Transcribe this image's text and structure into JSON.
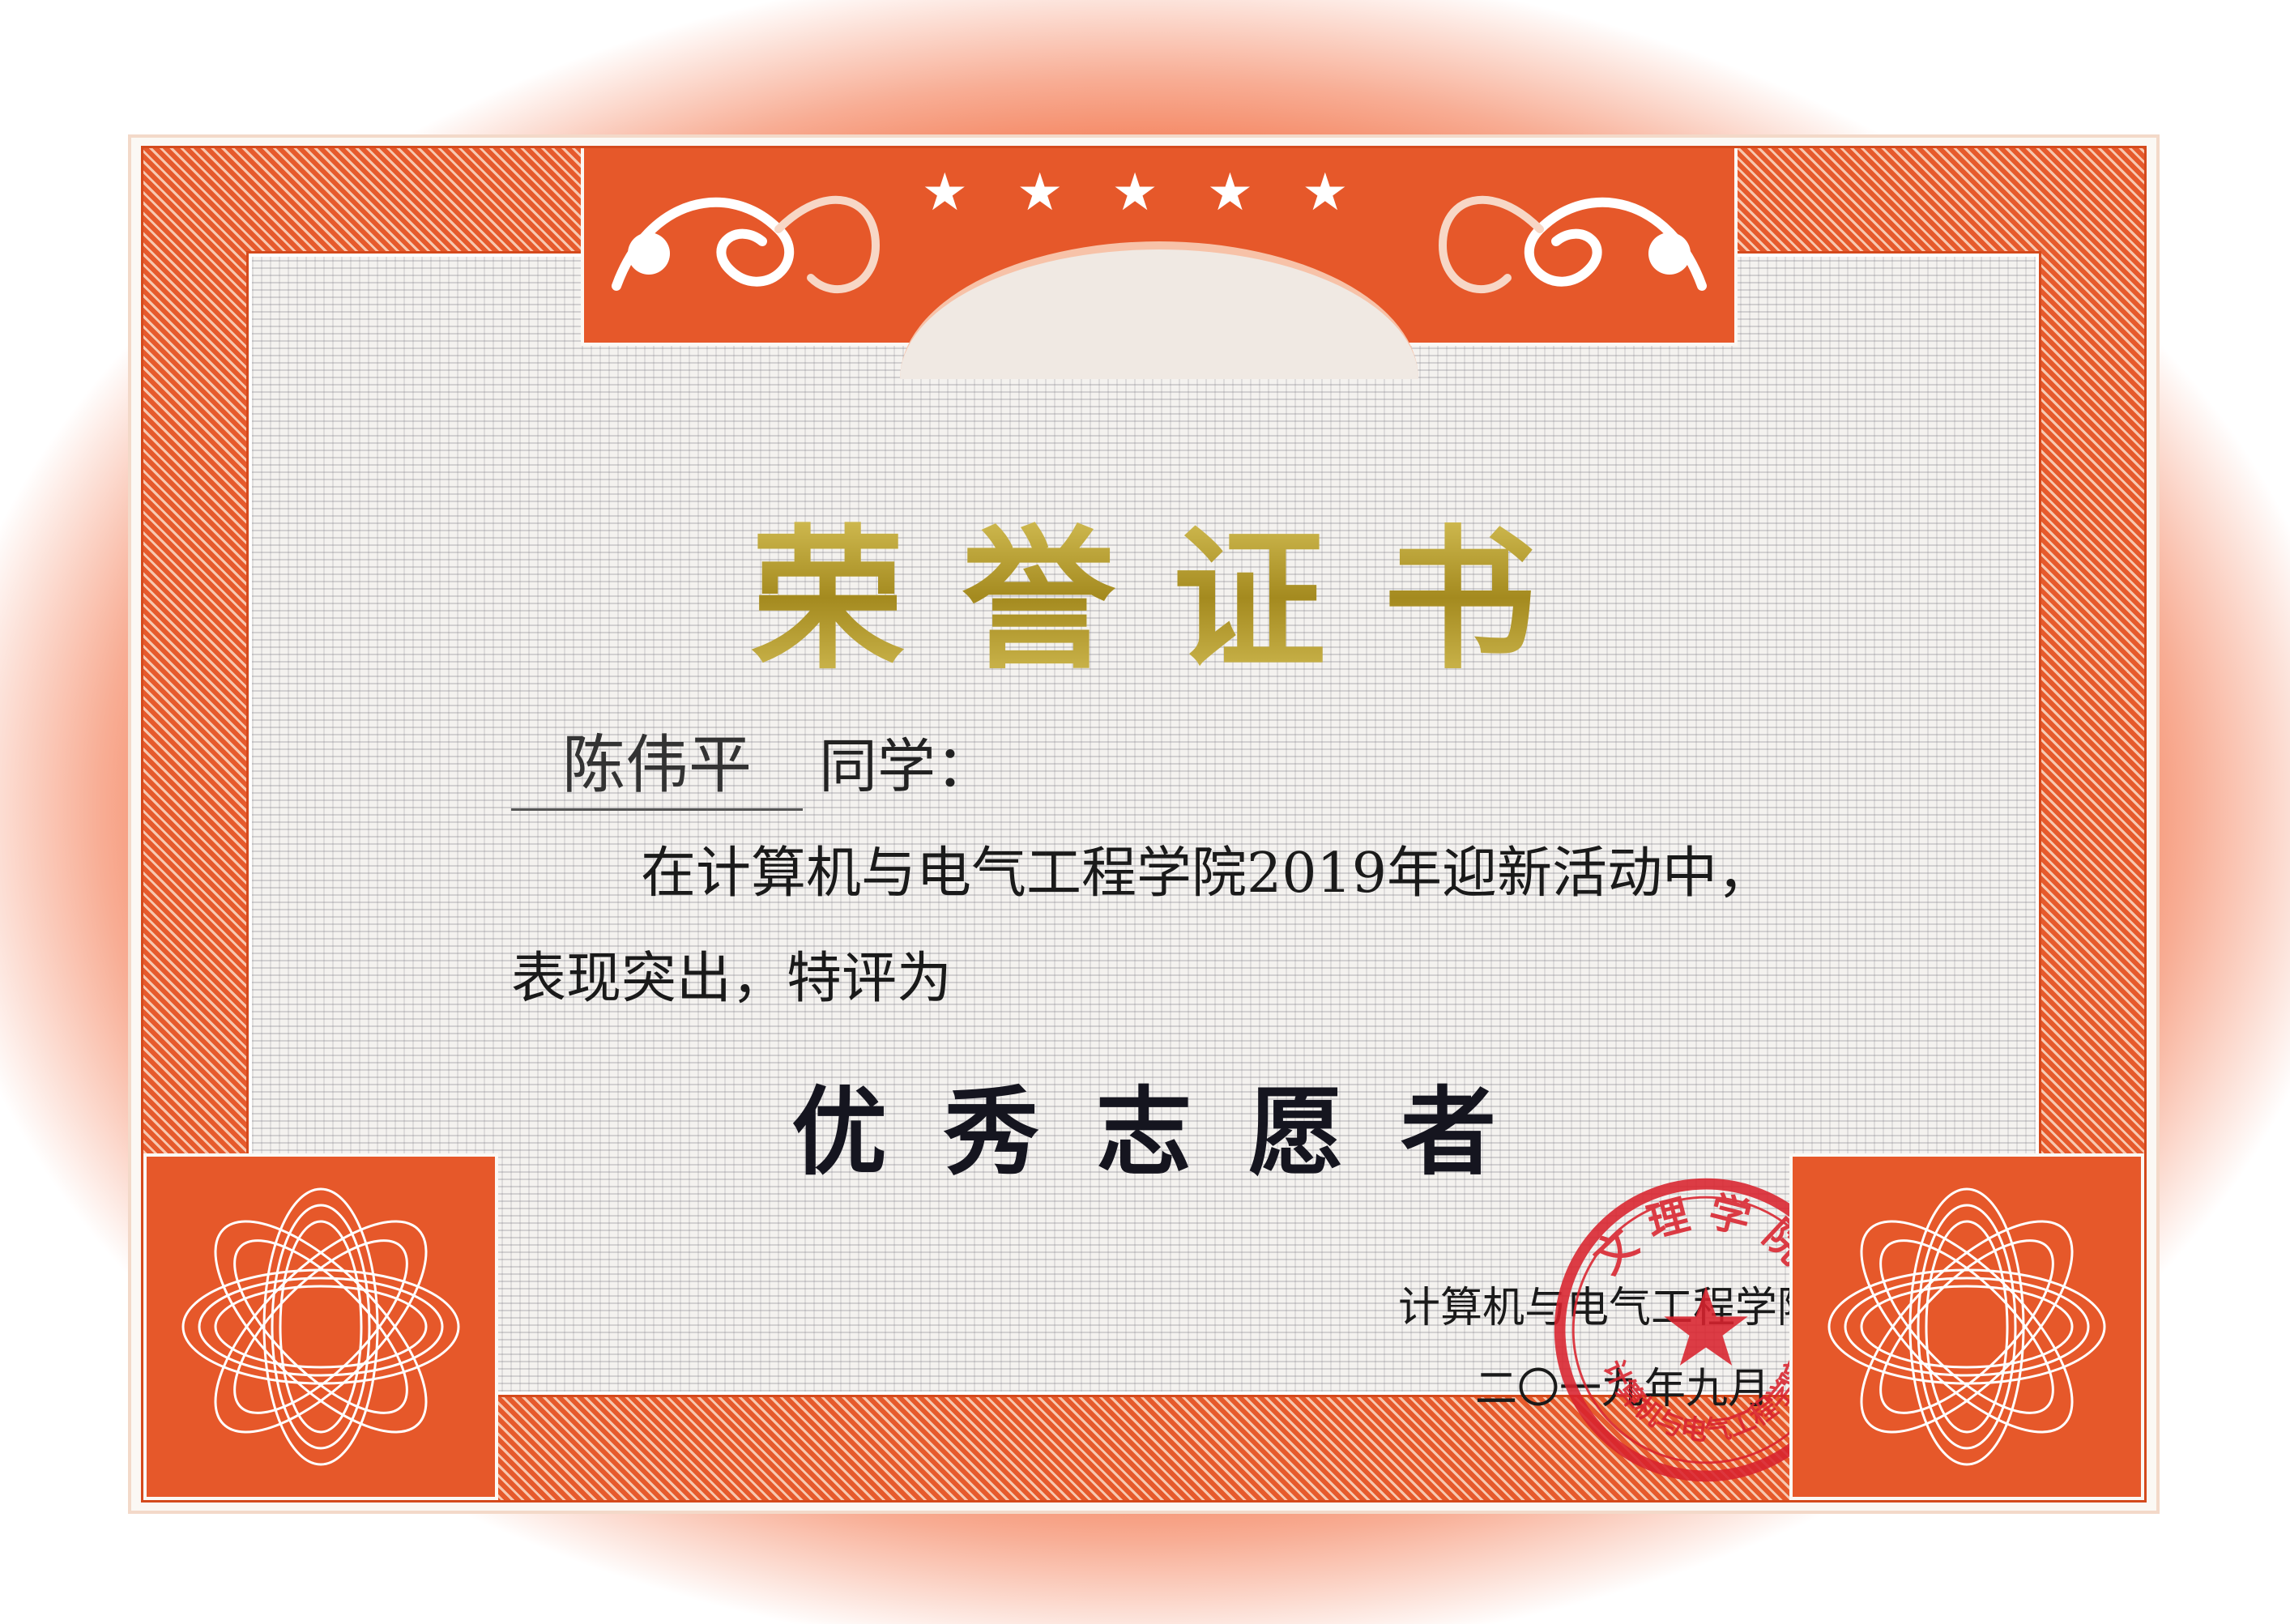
{
  "certificate": {
    "title": "荣誉证书",
    "recipient_name": "陈伟平",
    "recipient_suffix": "同学：",
    "body_line_1": "在计算机与电气工程学院2019年迎新活动中，",
    "body_line_2": "表现突出，特评为",
    "award": "优秀志愿者",
    "issuer": "计算机与电气工程学院",
    "issue_date": "二〇一九年九月",
    "seal_text_top": "文理学院",
    "seal_text_bottom": "计算机与电气工程学院"
  },
  "colors": {
    "frame_orange": "#e6582a",
    "title_gold": "#b8a23a",
    "seal_red": "#d9232e",
    "text_dark": "#1a1a1a"
  },
  "icons": {
    "banner_stars": "star-icon",
    "seal_star": "star-icon",
    "ornaments": "scroll-ornament"
  }
}
